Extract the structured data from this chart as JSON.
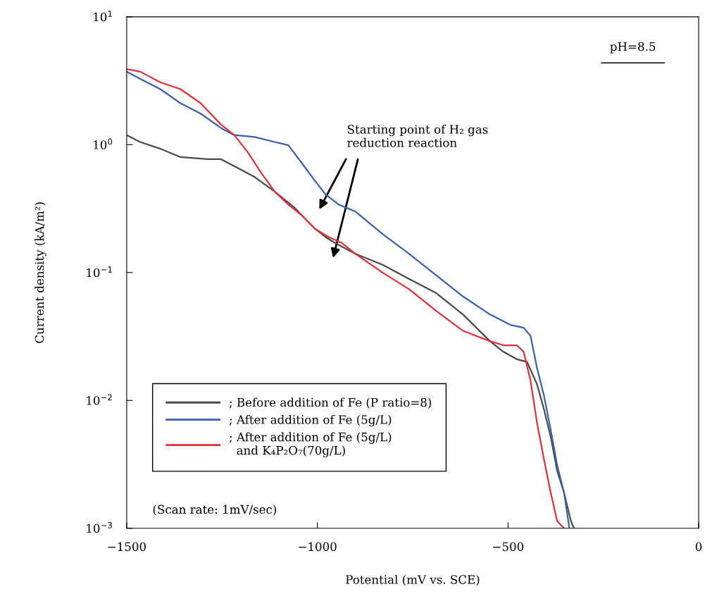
{
  "chart_data": {
    "type": "line",
    "xlabel": "Potential (mV vs. SCE)",
    "ylabel": "Current density (kA/m²)",
    "log": "y",
    "grid": false,
    "legend": "bottom left",
    "marker": "none",
    "line_style": "solid",
    "xlim": [
      -1500,
      0
    ],
    "ylim": [
      0.001,
      10
    ],
    "xticks": [
      {
        "value": -1500,
        "label": "−1500"
      },
      {
        "value": -1000,
        "label": "−1000"
      },
      {
        "value": -500,
        "label": "−500"
      },
      0
    ],
    "yticks": [
      {
        "value": 0.001,
        "label": "10$^{−3}$"
      },
      {
        "value": 0.01,
        "label": "10$^{−2}$"
      },
      {
        "value": 0.1,
        "label": "10$^{−1}$"
      },
      {
        "value": 1,
        "label": "10$^{0}$"
      },
      {
        "value": 10,
        "label": "10$^{1}$"
      }
    ],
    "series": [
      {
        "name": "; Before addition of Fe (P ratio=8)",
        "color": "#4a4a4a",
        "x": [
          -1500,
          -1465,
          -1412,
          -1359,
          -1288,
          -1271,
          -1253,
          -1218,
          -1165,
          -1112,
          -1059,
          -1006,
          -979,
          -953,
          -900,
          -829,
          -759,
          -688,
          -618,
          -547,
          -512,
          -477,
          -450,
          -424,
          -406,
          -388,
          -371,
          -353,
          -335,
          -327
        ],
        "values": [
          1.19,
          1.05,
          0.93,
          0.8,
          0.77,
          0.77,
          0.77,
          0.68,
          0.56,
          0.43,
          0.32,
          0.22,
          0.19,
          0.17,
          0.14,
          0.115,
          0.089,
          0.069,
          0.047,
          0.029,
          0.024,
          0.021,
          0.02,
          0.0134,
          0.0086,
          0.0052,
          0.0028,
          0.0019,
          0.00114,
          0.001
        ]
      },
      {
        "name": "; After addition of Fe (5g/L)",
        "color": "#3a5fb0",
        "x": [
          -1500,
          -1465,
          -1412,
          -1359,
          -1306,
          -1253,
          -1218,
          -1165,
          -1112,
          -1076,
          -1041,
          -1006,
          -979,
          -944,
          -900,
          -829,
          -759,
          -688,
          -618,
          -547,
          -494,
          -459,
          -441,
          -424,
          -406,
          -388,
          -371,
          -353,
          -339
        ],
        "values": [
          3.73,
          3.28,
          2.72,
          2.11,
          1.75,
          1.35,
          1.19,
          1.15,
          1.05,
          0.99,
          0.72,
          0.52,
          0.41,
          0.34,
          0.3,
          0.2,
          0.14,
          0.095,
          0.065,
          0.047,
          0.039,
          0.037,
          0.032,
          0.018,
          0.011,
          0.0059,
          0.0031,
          0.0019,
          0.001
        ]
      },
      {
        "name": "; After addition of Fe (5g/L)\n  and K₄P₂O₇(70g/L)",
        "color": "#e0303c",
        "x": [
          -1500,
          -1465,
          -1412,
          -1359,
          -1306,
          -1253,
          -1218,
          -1182,
          -1147,
          -1112,
          -1076,
          -1041,
          -1006,
          -971,
          -935,
          -900,
          -829,
          -759,
          -688,
          -618,
          -547,
          -512,
          -477,
          -459,
          -441,
          -424,
          -406,
          -388,
          -371,
          -353
        ],
        "values": [
          3.9,
          3.73,
          3.08,
          2.72,
          2.11,
          1.44,
          1.19,
          0.87,
          0.6,
          0.43,
          0.34,
          0.28,
          0.22,
          0.19,
          0.17,
          0.14,
          0.1,
          0.074,
          0.05,
          0.035,
          0.029,
          0.027,
          0.027,
          0.024,
          0.0143,
          0.0067,
          0.0035,
          0.0019,
          0.00114,
          0.001
        ]
      }
    ],
    "annotations": [
      "pH=8.5",
      "Starting point of H₂ gas\nreduction reaction",
      "(Scan rate: 1mV/sec)"
    ]
  }
}
